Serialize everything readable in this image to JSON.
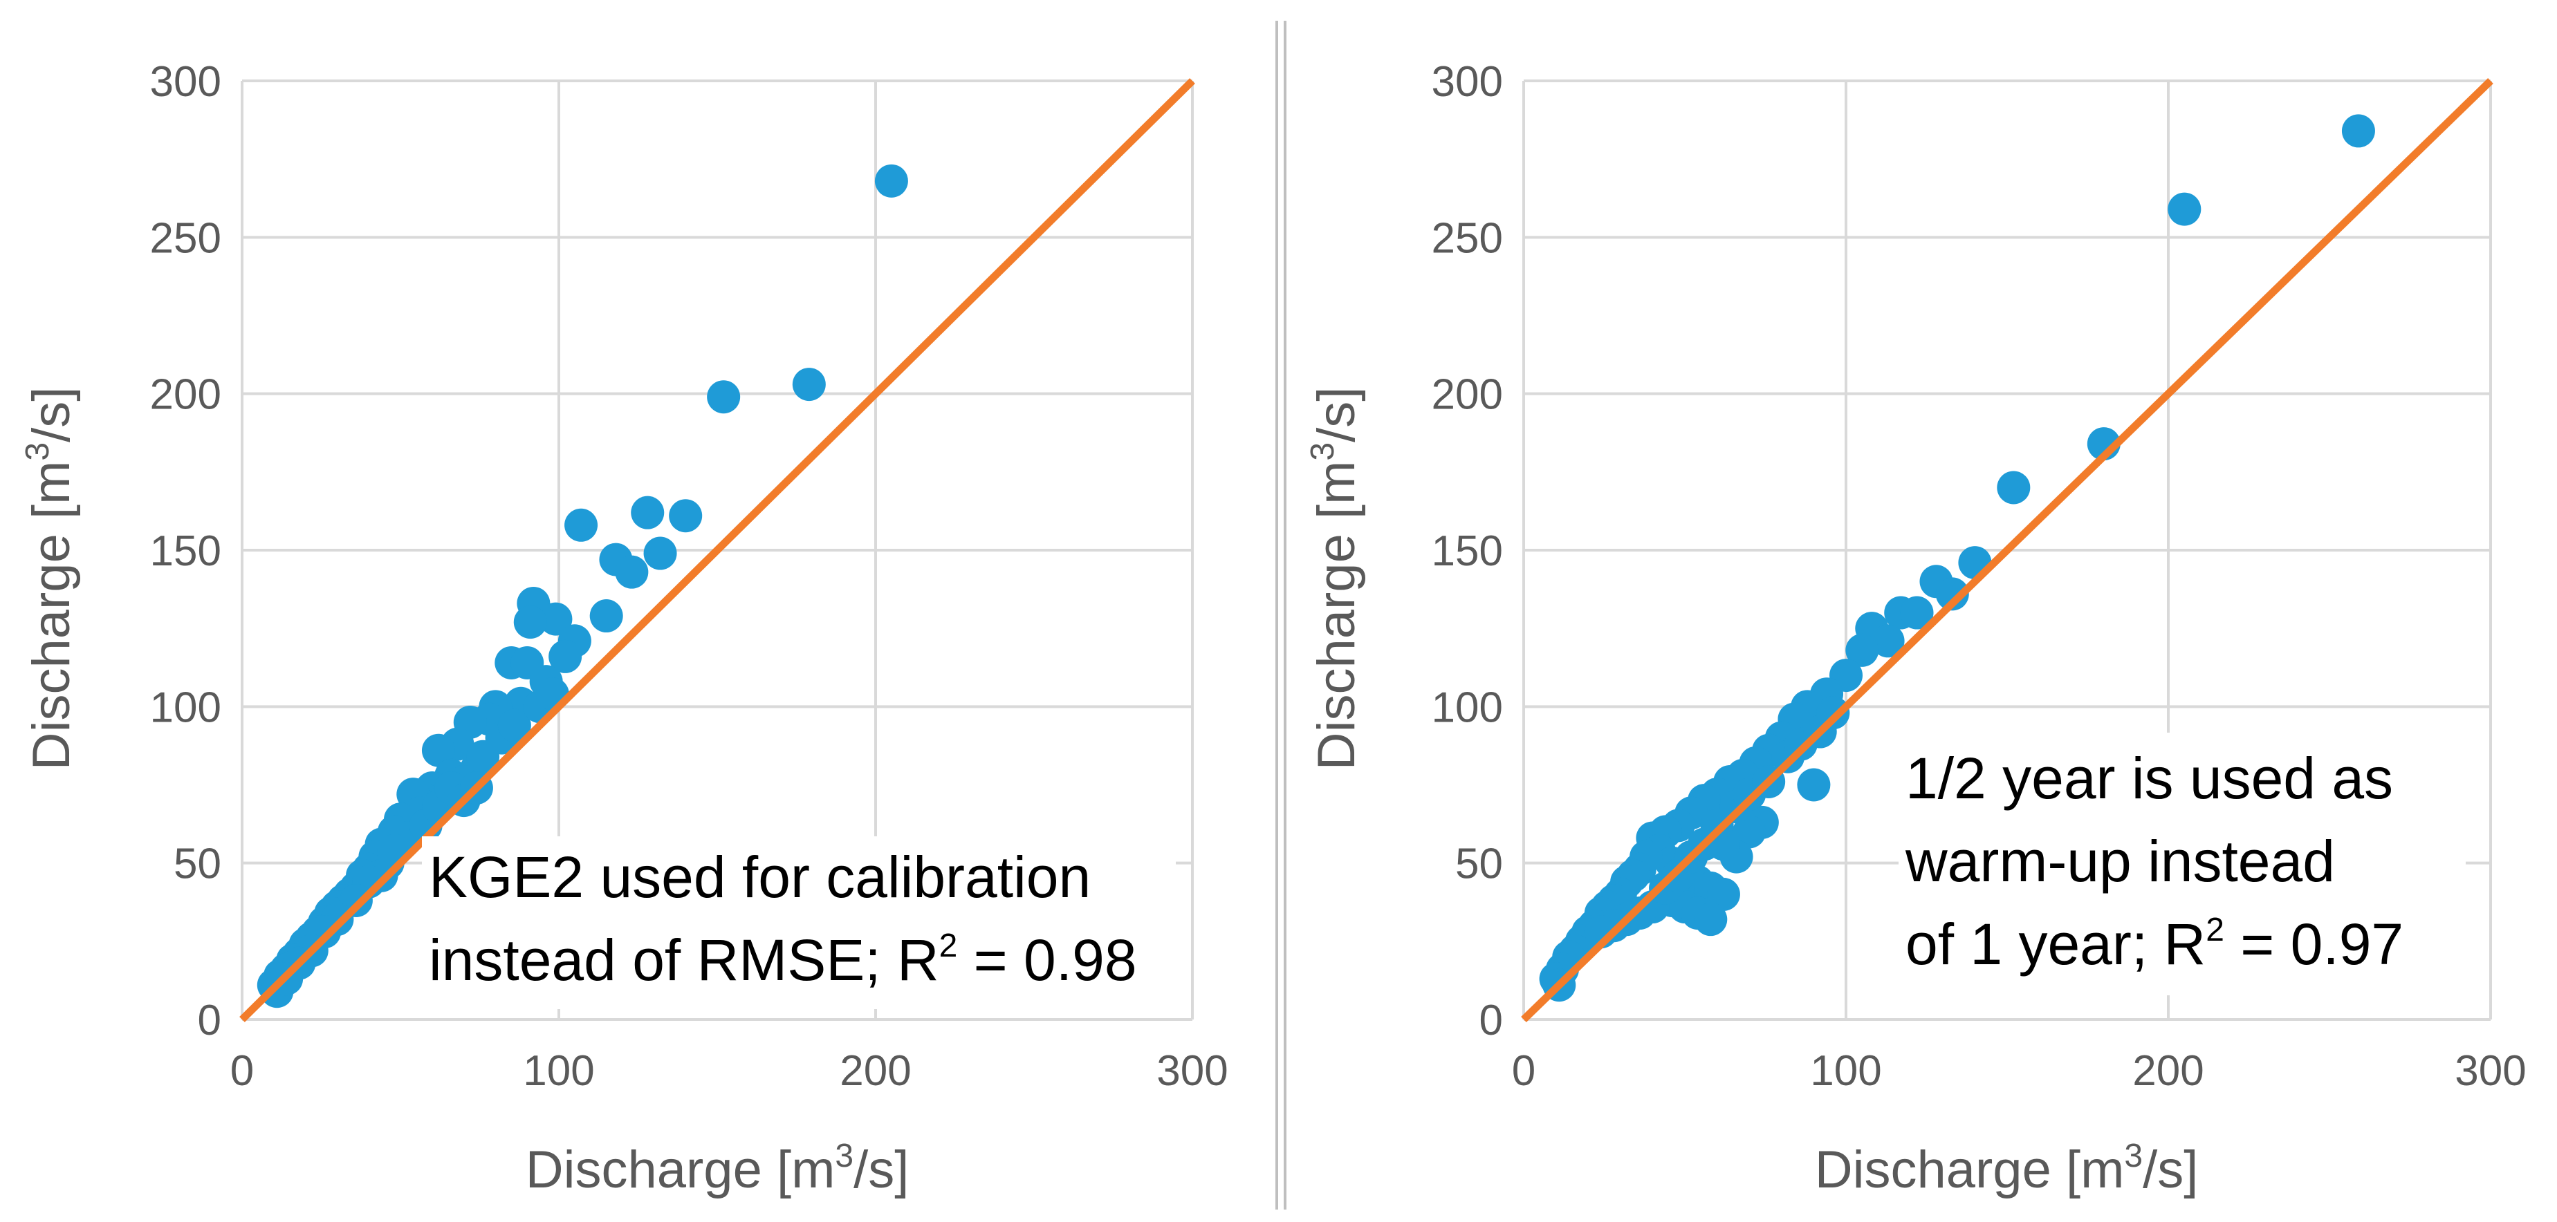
{
  "colors": {
    "points": "#1f9bd7",
    "line": "#f27c2a",
    "grid": "#d9d9d9",
    "text": "#595959"
  },
  "chart_data": [
    {
      "type": "scatter",
      "name": "left-panel",
      "title": "",
      "xlabel": "Discharge [m³/s]",
      "ylabel": "Discharge [m³/s]",
      "xlabel_parts": [
        "Discharge [m",
        "3",
        "/s]"
      ],
      "ylabel_parts": [
        "Discharge [m",
        "3",
        "/s]"
      ],
      "xlim": [
        0,
        300
      ],
      "ylim": [
        0,
        300
      ],
      "xticks": [
        0,
        100,
        200,
        300
      ],
      "yticks": [
        0,
        50,
        100,
        150,
        200,
        250,
        300
      ],
      "xtick_labels": [
        "0",
        "100",
        "200",
        "300"
      ],
      "ytick_labels": [
        "0",
        "50",
        "100",
        "150",
        "200",
        "250",
        "300"
      ],
      "grid": true,
      "annotation": {
        "line1": "KGE2 used for calibration",
        "line2_prefix": "instead of RMSE; R",
        "line2_sup": "2",
        "line2_suffix": " = 0.98"
      },
      "reference_line": {
        "x": [
          0,
          300
        ],
        "y": [
          0,
          300
        ]
      },
      "series": [
        {
          "name": "simulated vs observed",
          "points": [
            [
              205,
              268
            ],
            [
              152,
              199
            ],
            [
              179,
              203
            ],
            [
              128,
              162
            ],
            [
              140,
              161
            ],
            [
              107,
              158
            ],
            [
              118,
              147
            ],
            [
              123,
              143
            ],
            [
              132,
              149
            ],
            [
              115,
              129
            ],
            [
              92,
              133
            ],
            [
              99,
              128
            ],
            [
              91,
              127
            ],
            [
              105,
              121
            ],
            [
              102,
              116
            ],
            [
              85,
              114
            ],
            [
              90,
              114
            ],
            [
              96,
              108
            ],
            [
              88,
              101
            ],
            [
              80,
              100
            ],
            [
              78,
              96
            ],
            [
              72,
              95
            ],
            [
              68,
              88
            ],
            [
              62,
              86
            ],
            [
              74,
              80
            ],
            [
              66,
              78
            ],
            [
              60,
              74
            ],
            [
              58,
              70
            ],
            [
              54,
              72
            ],
            [
              56,
              66
            ],
            [
              50,
              64
            ],
            [
              48,
              60
            ],
            [
              52,
              58
            ],
            [
              44,
              56
            ],
            [
              42,
              52
            ],
            [
              46,
              50
            ],
            [
              40,
              48
            ],
            [
              38,
              46
            ],
            [
              36,
              42
            ],
            [
              34,
              40
            ],
            [
              32,
              38
            ],
            [
              30,
              36
            ],
            [
              28,
              34
            ],
            [
              26,
              31
            ],
            [
              24,
              28
            ],
            [
              22,
              26
            ],
            [
              20,
              24
            ],
            [
              18,
              21
            ],
            [
              16,
              19
            ],
            [
              14,
              16
            ],
            [
              12,
              14
            ],
            [
              10,
              11
            ],
            [
              11,
              9
            ],
            [
              64,
              70
            ],
            [
              70,
              76
            ],
            [
              76,
              84
            ],
            [
              82,
              90
            ],
            [
              86,
              94
            ],
            [
              94,
              100
            ],
            [
              98,
              104
            ],
            [
              58,
              62
            ],
            [
              62,
              68
            ],
            [
              66,
              74
            ],
            [
              70,
              70
            ],
            [
              74,
              74
            ],
            [
              44,
              46
            ],
            [
              48,
              54
            ],
            [
              40,
              44
            ],
            [
              36,
              38
            ],
            [
              30,
              32
            ],
            [
              26,
              28
            ],
            [
              22,
              22
            ],
            [
              18,
              18
            ],
            [
              14,
              13
            ]
          ]
        }
      ]
    },
    {
      "type": "scatter",
      "name": "right-panel",
      "title": "",
      "xlabel": "Discharge [m³/s]",
      "ylabel": "Discharge [m³/s]",
      "xlabel_parts": [
        "Discharge [m",
        "3",
        "/s]"
      ],
      "ylabel_parts": [
        "Discharge [m",
        "3",
        "/s]"
      ],
      "xlim": [
        0,
        300
      ],
      "ylim": [
        0,
        300
      ],
      "xticks": [
        0,
        100,
        200,
        300
      ],
      "yticks": [
        0,
        50,
        100,
        150,
        200,
        250,
        300
      ],
      "xtick_labels": [
        "0",
        "100",
        "200",
        "300"
      ],
      "ytick_labels": [
        "0",
        "50",
        "100",
        "150",
        "200",
        "250",
        "300"
      ],
      "grid": true,
      "annotation": {
        "line1": "1/2 year is used as",
        "line2": "warm-up instead",
        "line3_prefix": "of 1 year; R",
        "line3_sup": "2",
        "line3_suffix": " = 0.97"
      },
      "reference_line": {
        "x": [
          0,
          300
        ],
        "y": [
          0,
          300
        ]
      },
      "series": [
        {
          "name": "simulated vs observed",
          "points": [
            [
              259,
              284
            ],
            [
              205,
              259
            ],
            [
              180,
              184
            ],
            [
              152,
              170
            ],
            [
              140,
              146
            ],
            [
              128,
              140
            ],
            [
              133,
              136
            ],
            [
              117,
              130
            ],
            [
              122,
              130
            ],
            [
              108,
              125
            ],
            [
              113,
              121
            ],
            [
              105,
              118
            ],
            [
              100,
              110
            ],
            [
              94,
              104
            ],
            [
              88,
              100
            ],
            [
              90,
              75
            ],
            [
              84,
              96
            ],
            [
              80,
              90
            ],
            [
              76,
              86
            ],
            [
              72,
              82
            ],
            [
              68,
              78
            ],
            [
              74,
              63
            ],
            [
              70,
              60
            ],
            [
              64,
              76
            ],
            [
              60,
              72
            ],
            [
              56,
              70
            ],
            [
              52,
              66
            ],
            [
              48,
              62
            ],
            [
              44,
              60
            ],
            [
              40,
              58
            ],
            [
              42,
              54
            ],
            [
              46,
              50
            ],
            [
              50,
              48
            ],
            [
              54,
              44
            ],
            [
              58,
              42
            ],
            [
              62,
              40
            ],
            [
              38,
              52
            ],
            [
              36,
              48
            ],
            [
              34,
              46
            ],
            [
              32,
              44
            ],
            [
              30,
              40
            ],
            [
              28,
              38
            ],
            [
              26,
              36
            ],
            [
              24,
              34
            ],
            [
              22,
              30
            ],
            [
              20,
              28
            ],
            [
              18,
              25
            ],
            [
              16,
              22
            ],
            [
              14,
              20
            ],
            [
              12,
              16
            ],
            [
              10,
              13
            ],
            [
              11,
              11
            ],
            [
              46,
              38
            ],
            [
              50,
              36
            ],
            [
              54,
              34
            ],
            [
              58,
              32
            ],
            [
              40,
              36
            ],
            [
              36,
              34
            ],
            [
              32,
              32
            ],
            [
              28,
              30
            ],
            [
              24,
              28
            ],
            [
              44,
              42
            ],
            [
              48,
              46
            ],
            [
              52,
              52
            ],
            [
              56,
              56
            ],
            [
              60,
              62
            ],
            [
              66,
              68
            ],
            [
              70,
              72
            ],
            [
              76,
              76
            ],
            [
              82,
              84
            ],
            [
              86,
              88
            ],
            [
              92,
              92
            ],
            [
              96,
              98
            ],
            [
              66,
              52
            ],
            [
              62,
              56
            ]
          ]
        }
      ]
    }
  ]
}
